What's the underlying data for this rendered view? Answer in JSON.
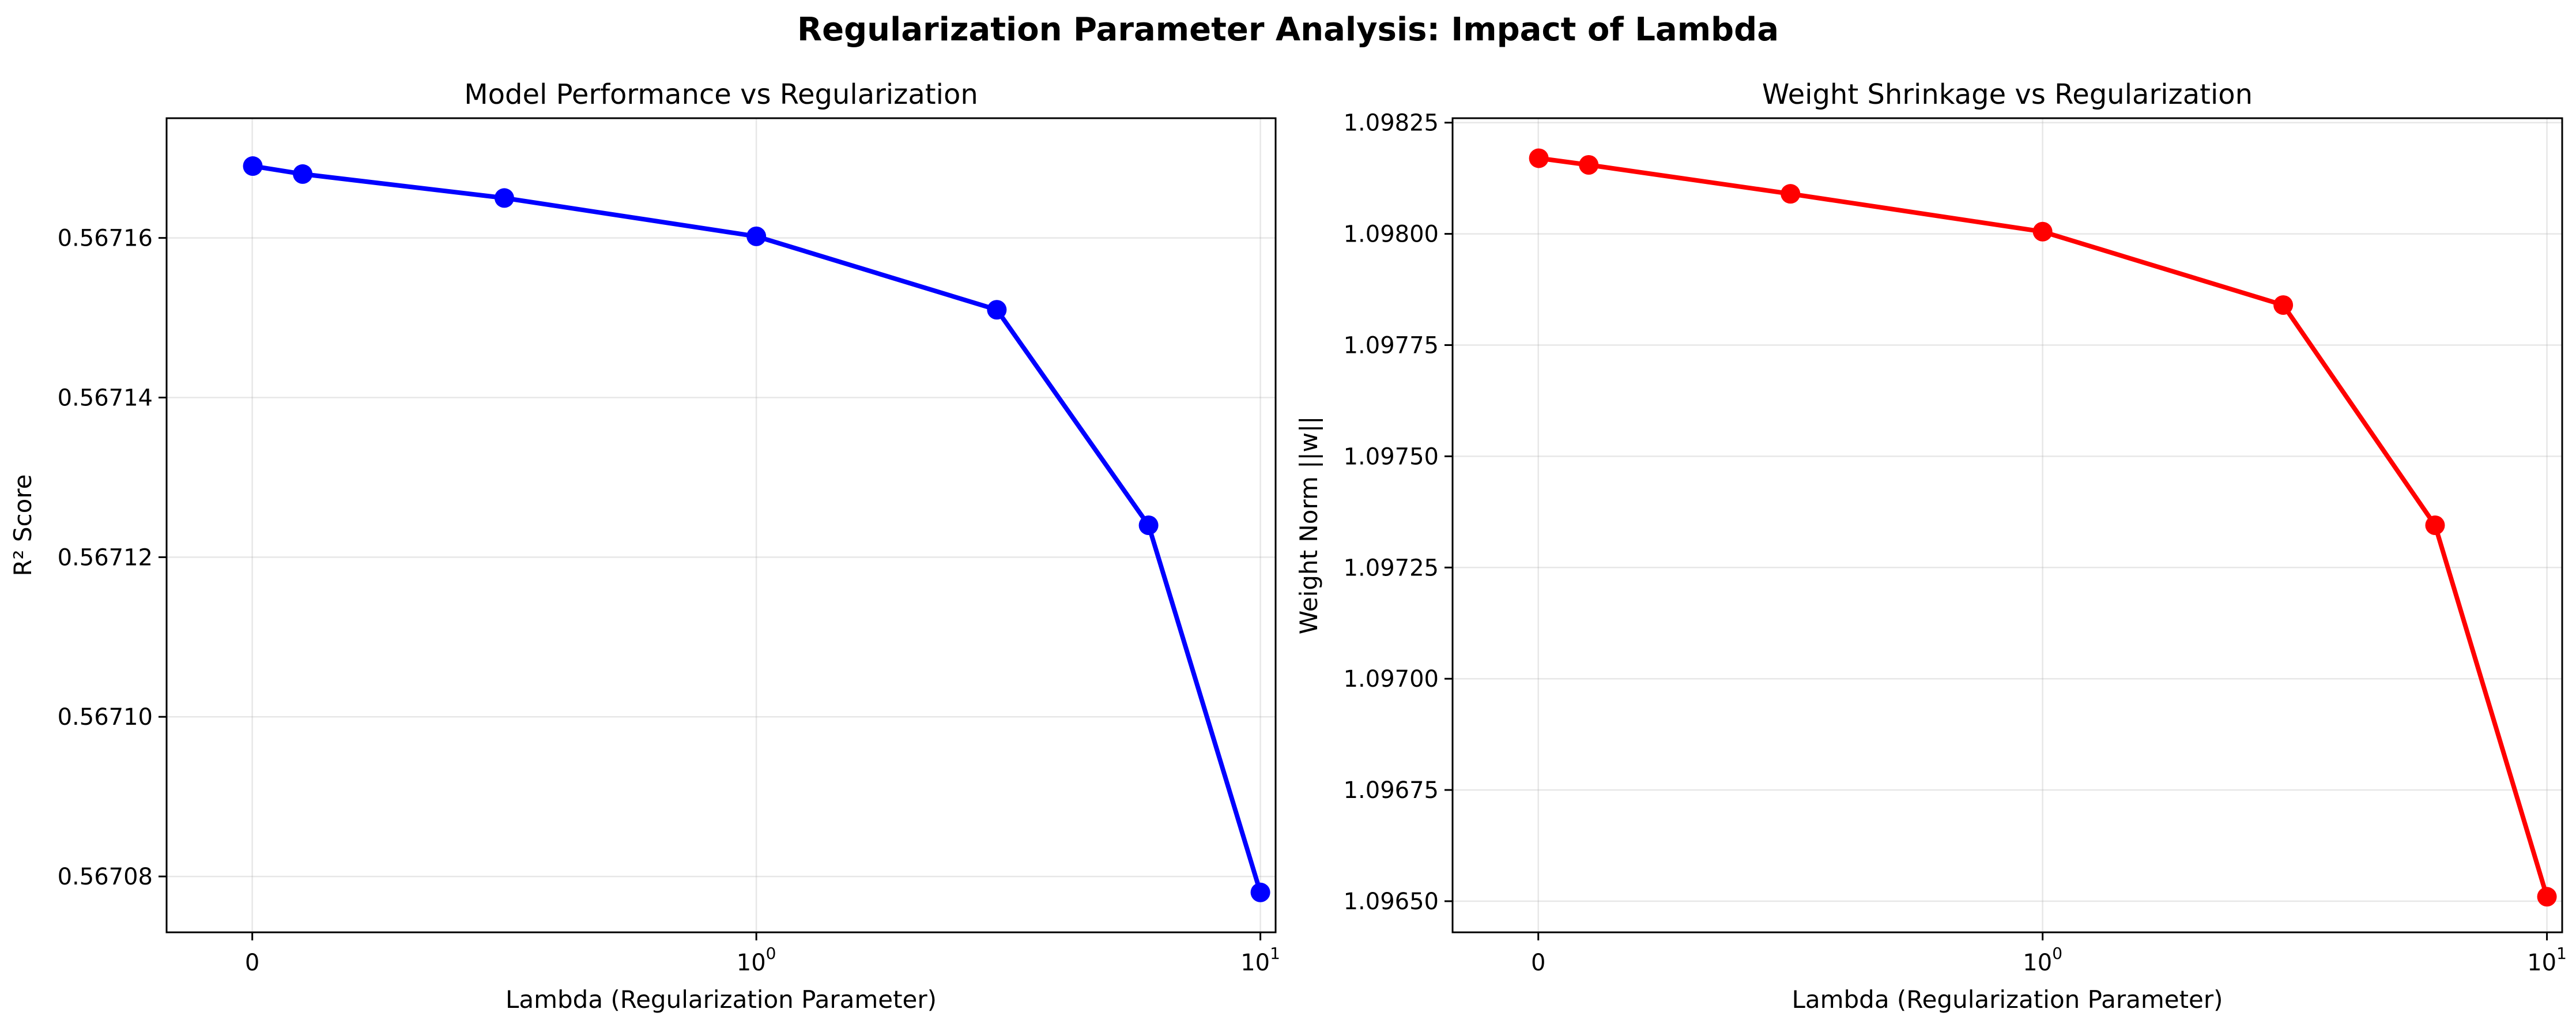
{
  "figure": {
    "suptitle": "Regularization Parameter Analysis: Impact of Lambda"
  },
  "chart_data": [
    {
      "type": "line",
      "title": "Model Performance vs Regularization",
      "xlabel": "Lambda (Regularization Parameter)",
      "ylabel": "R² Score",
      "xscale": "symlog",
      "xticks": [
        {
          "value": 0,
          "label": "0",
          "sup": ""
        },
        {
          "value": 1,
          "label": "10",
          "sup": "0"
        },
        {
          "value": 10,
          "label": "10",
          "sup": "1"
        }
      ],
      "yticks": [
        {
          "value": 0.56708,
          "label": "0.56708"
        },
        {
          "value": 0.5671,
          "label": "0.56710"
        },
        {
          "value": 0.56712,
          "label": "0.56712"
        },
        {
          "value": 0.56714,
          "label": "0.56714"
        },
        {
          "value": 0.56716,
          "label": "0.56716"
        }
      ],
      "xlim": [
        -0.17,
        10.72
      ],
      "ylim": [
        0.567073,
        0.567175
      ],
      "grid": true,
      "color": "#0000ff",
      "series": [
        {
          "x": [
            0.001,
            0.1,
            0.5,
            1,
            3,
            6,
            10
          ],
          "y": [
            0.567169,
            0.567168,
            0.567165,
            0.5671602,
            0.567151,
            0.567124,
            0.567078
          ]
        }
      ]
    },
    {
      "type": "line",
      "title": "Weight Shrinkage vs Regularization",
      "xlabel": "Lambda (Regularization Parameter)",
      "ylabel": "Weight Norm ||w||",
      "xscale": "symlog",
      "xticks": [
        {
          "value": 0,
          "label": "0",
          "sup": ""
        },
        {
          "value": 1,
          "label": "10",
          "sup": "0"
        },
        {
          "value": 10,
          "label": "10",
          "sup": "1"
        }
      ],
      "yticks": [
        {
          "value": 1.0965,
          "label": "1.09650"
        },
        {
          "value": 1.09675,
          "label": "1.09675"
        },
        {
          "value": 1.097,
          "label": "1.09700"
        },
        {
          "value": 1.09725,
          "label": "1.09725"
        },
        {
          "value": 1.0975,
          "label": "1.09750"
        },
        {
          "value": 1.09775,
          "label": "1.09775"
        },
        {
          "value": 1.098,
          "label": "1.09800"
        },
        {
          "value": 1.09825,
          "label": "1.09825"
        }
      ],
      "xlim": [
        -0.17,
        10.72
      ],
      "ylim": [
        1.09643,
        1.09826
      ],
      "grid": true,
      "color": "#ff0000",
      "series": [
        {
          "x": [
            0.001,
            0.1,
            0.5,
            1,
            3,
            6,
            10
          ],
          "y": [
            1.09817,
            1.098155,
            1.09809,
            1.098005,
            1.09784,
            1.097345,
            1.09651
          ]
        }
      ]
    }
  ]
}
